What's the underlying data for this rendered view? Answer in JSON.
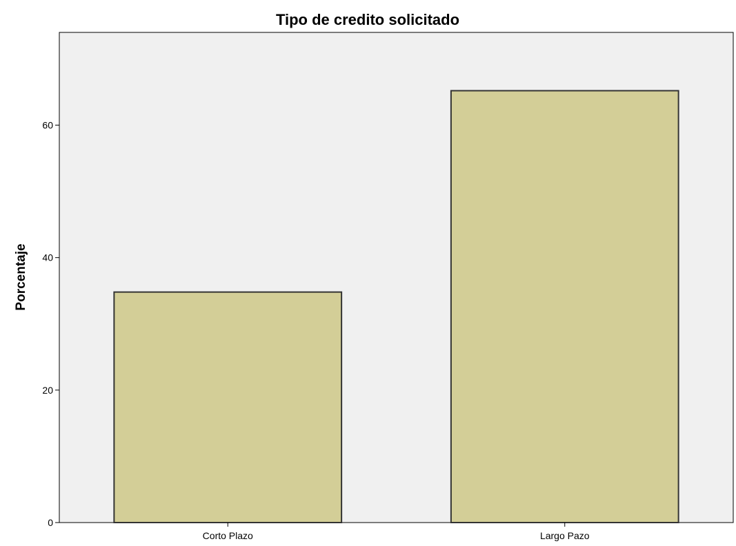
{
  "chart_data": {
    "type": "bar",
    "title": "Tipo de credito solicitado",
    "xlabel": "",
    "ylabel": "Porcentaje",
    "categories": [
      "Corto Plazo",
      "Largo Pazo"
    ],
    "values": [
      34.8,
      65.2
    ],
    "ylim": [
      0,
      74
    ],
    "yticks": [
      0,
      20,
      40,
      60
    ],
    "grid": false,
    "legend": "none",
    "colors": {
      "plot_background": "#f0f0f0",
      "bar_fill": "#d3ce97",
      "bar_stroke": "#333333",
      "axis": "#000000"
    }
  }
}
